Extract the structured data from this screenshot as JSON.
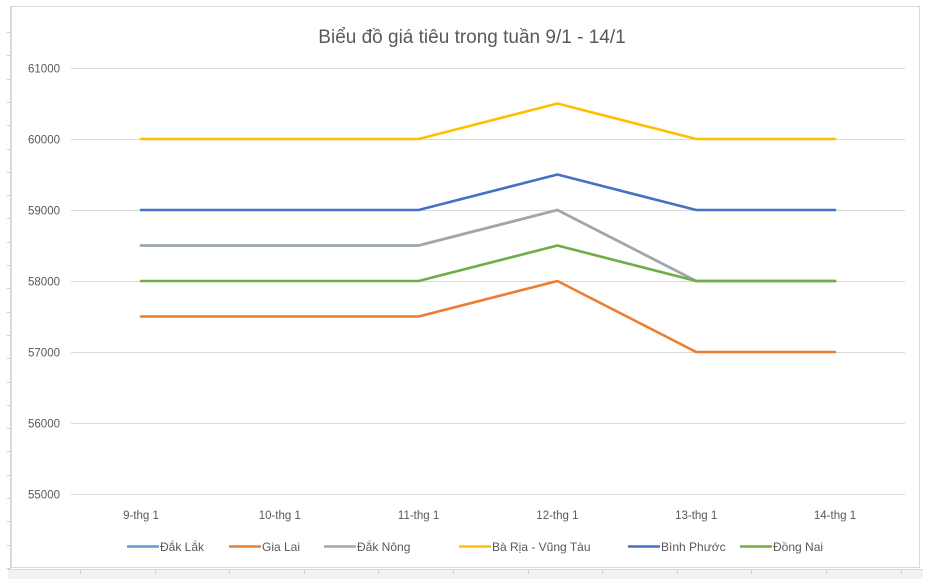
{
  "chart_data": {
    "type": "line",
    "title": "Biểu đồ giá tiêu trong tuần 9/1 - 14/1",
    "xlabel": "",
    "ylabel": "",
    "categories": [
      "9-thg 1",
      "10-thg 1",
      "11-thg 1",
      "12-thg 1",
      "13-thg 1",
      "14-thg 1"
    ],
    "ylim": [
      55000,
      61000
    ],
    "yticks": [
      "55000",
      "56000",
      "57000",
      "58000",
      "59000",
      "60000",
      "61000"
    ],
    "grid": true,
    "legend_position": "bottom",
    "series": [
      {
        "name": "Đắk Lắk",
        "color": "#5B9BD5",
        "values": [
          58500,
          58500,
          58500,
          59000,
          58000,
          58000
        ]
      },
      {
        "name": "Gia Lai",
        "color": "#ED7D31",
        "values": [
          57500,
          57500,
          57500,
          58000,
          57000,
          57000
        ]
      },
      {
        "name": "Đắk Nông",
        "color": "#A5A5A5",
        "values": [
          58500,
          58500,
          58500,
          59000,
          58000,
          58000
        ]
      },
      {
        "name": "Bà Rịa - Vũng Tàu",
        "color": "#FFC000",
        "values": [
          60000,
          60000,
          60000,
          60500,
          60000,
          60000
        ]
      },
      {
        "name": "Bình Phước",
        "color": "#4472C4",
        "values": [
          59000,
          59000,
          59000,
          59500,
          59000,
          59000
        ]
      },
      {
        "name": "Đồng Nai",
        "color": "#70AD47",
        "values": [
          58000,
          58000,
          58000,
          58500,
          58000,
          58000
        ]
      }
    ]
  }
}
